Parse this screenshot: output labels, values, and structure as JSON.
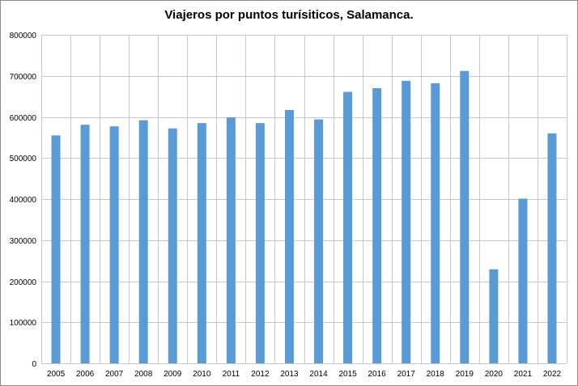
{
  "chart_data": {
    "type": "bar",
    "title": "Viajeros por puntos turísiticos, Salamanca.",
    "xlabel": "",
    "ylabel": "",
    "categories": [
      "2005",
      "2006",
      "2007",
      "2008",
      "2009",
      "2010",
      "2011",
      "2012",
      "2013",
      "2014",
      "2015",
      "2016",
      "2017",
      "2018",
      "2019",
      "2020",
      "2021",
      "2022"
    ],
    "values": [
      555000,
      581000,
      577000,
      592000,
      572000,
      585000,
      599000,
      585000,
      617000,
      594000,
      661000,
      670000,
      688000,
      682000,
      712000,
      229000,
      401000,
      560000
    ],
    "ylim": [
      0,
      800000
    ],
    "yticks": [
      0,
      100000,
      200000,
      300000,
      400000,
      500000,
      600000,
      700000,
      800000
    ],
    "grid": true,
    "legend": "none",
    "bar_color": "#5b9bd5",
    "grid_color": "#c8c8c8"
  }
}
